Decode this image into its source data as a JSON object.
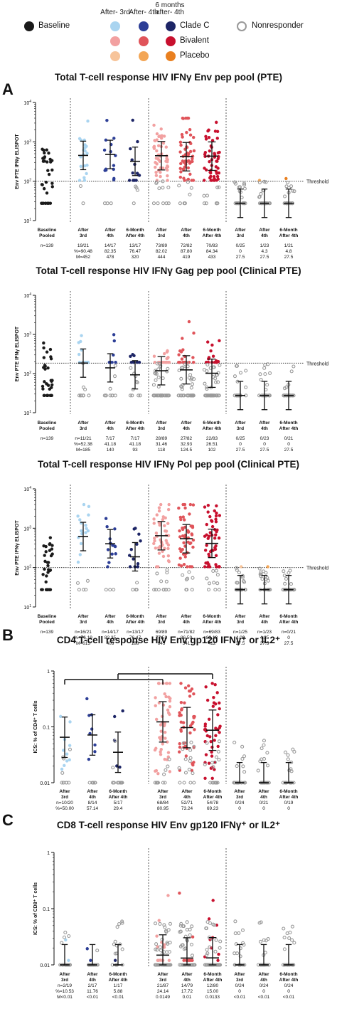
{
  "legend": {
    "column_headers": [
      "After- 3rd",
      "After- 4th",
      "6 months after- 4th"
    ],
    "rows": [
      {
        "label": "Baseline",
        "colors": [
          "#1a1a1a"
        ]
      },
      {
        "label": "Clade C",
        "colors": [
          "#a9d4f0",
          "#2c3e96",
          "#1d2566"
        ]
      },
      {
        "label": "Bivalent",
        "colors": [
          "#f2a0a0",
          "#e0545a",
          "#c8102e"
        ]
      },
      {
        "label": "Placebo",
        "colors": [
          "#f7c49a",
          "#f3a656",
          "#e98020"
        ]
      }
    ],
    "nonresponder_label": "Nonresponder"
  },
  "panel_letters": [
    "A",
    "B",
    "C"
  ],
  "threshold_label": "Threshold",
  "elispot_ylabel": "Env PTE IFNγ ELISPOT",
  "ics_ylabel_cd4": "ICS: % of CD4⁺ T cells",
  "ics_ylabel_cd8": "ICS: % of CD8⁺ T cells",
  "elispot_categories": [
    "Baseline Pooled",
    "After 3rd",
    "After 4th",
    "6-Month After 4th",
    "After 3rd",
    "After 4th",
    "6-Month After 4th",
    "After 3rd",
    "After 4th",
    "6-Month After 4th"
  ],
  "ics_categories": [
    "After 3rd",
    "After 4th",
    "6-Month After 4th",
    "After 3rd",
    "After 4th",
    "6-Month After 4th",
    "After 3rd",
    "After 4th",
    "6-Month After 4th"
  ],
  "chart_data": [
    {
      "type": "scatter",
      "title": "Total T-cell response HIV IFNγ Env pep pool (PTE)",
      "ylabel": "Env PTE IFNγ ELISPOT",
      "yscale": "log",
      "ylim": [
        10,
        10000
      ],
      "threshold": 100,
      "categories": [
        "Baseline Pooled",
        "After 3rd",
        "After 4th",
        "6-Month After 4th",
        "After 3rd",
        "After 4th",
        "6-Month After 4th",
        "After 3rd",
        "After 4th",
        "6-Month After 4th"
      ],
      "groups": [
        "Baseline",
        "Clade C",
        "Clade C",
        "Clade C",
        "Bivalent",
        "Bivalent",
        "Bivalent",
        "Placebo",
        "Placebo",
        "Placebo"
      ],
      "responders": [
        null,
        19,
        14,
        13,
        73,
        72,
        70,
        0,
        1,
        1
      ],
      "n": [
        139,
        21,
        17,
        17,
        89,
        82,
        83,
        25,
        23,
        21
      ],
      "median": [
        null,
        452,
        478,
        320,
        444,
        419,
        433,
        27.5,
        27.5,
        27.5
      ],
      "count_text": [
        "n=139",
        "19/21",
        "14/17",
        "13/17",
        "73/89",
        "72/82",
        "70/83",
        "0/25",
        "1/23",
        "1/21"
      ],
      "pct_text": [
        "",
        "%=90.48",
        "82.35",
        "76.47",
        "82.02",
        "87.80",
        "84.34",
        "0",
        "4.3",
        "4.8"
      ],
      "med_text": [
        "",
        "M=452",
        "478",
        "320",
        "444",
        "419",
        "433",
        "27.5",
        "27.5",
        "27.5"
      ]
    },
    {
      "type": "scatter",
      "title": "Total T-cell response HIV IFNγ Gag pep pool (Clinical PTE)",
      "ylabel": "Env PTE IFNγ ELISPOT",
      "yscale": "log",
      "ylim": [
        10,
        10000
      ],
      "threshold": 185,
      "categories": [
        "Baseline Pooled",
        "After 3rd",
        "After 4th",
        "6-Month After 4th",
        "After 3rd",
        "After 4th",
        "6-Month After 4th",
        "After 3rd",
        "After 4th",
        "6-Month After 4th"
      ],
      "groups": [
        "Baseline",
        "Clade C",
        "Clade C",
        "Clade C",
        "Bivalent",
        "Bivalent",
        "Bivalent",
        "Placebo",
        "Placebo",
        "Placebo"
      ],
      "responders": [
        null,
        11,
        7,
        7,
        28,
        27,
        22,
        0,
        0,
        0
      ],
      "n": [
        139,
        21,
        17,
        17,
        89,
        82,
        83,
        25,
        23,
        21
      ],
      "median": [
        null,
        185,
        140,
        93,
        118,
        124.5,
        102,
        27.5,
        27.5,
        27.5
      ],
      "count_text": [
        "n=139",
        "n=11/21",
        "7/17",
        "7/17",
        "28/89",
        "27/82",
        "22/83",
        "0/25",
        "0/23",
        "0/21"
      ],
      "pct_text": [
        "",
        "%=52.38",
        "41.18",
        "41.18",
        "31.46",
        "32.93",
        "26.51",
        "0",
        "0",
        "0"
      ],
      "med_text": [
        "",
        "M=185",
        "140",
        "93",
        "118",
        "124.5",
        "102",
        "27.5",
        "27.5",
        "27.5"
      ]
    },
    {
      "type": "scatter",
      "title": "Total T-cell response HIV IFNγ Pol pep pool (Clinical PTE)",
      "ylabel": "Env PTE IFNγ ELISPOT",
      "yscale": "log",
      "ylim": [
        10,
        10000
      ],
      "threshold": 100,
      "categories": [
        "Baseline Pooled",
        "After 3rd",
        "After 4th",
        "6-Month After 4th",
        "After 3rd",
        "After 4th",
        "6-Month After 4th",
        "After 3rd",
        "After 4th",
        "6-Month After 4th"
      ],
      "groups": [
        "Baseline",
        "Clade C",
        "Clade C",
        "Clade C",
        "Bivalent",
        "Bivalent",
        "Bivalent",
        "Placebo",
        "Placebo",
        "Placebo"
      ],
      "responders": [
        null,
        16,
        14,
        13,
        69,
        71,
        69,
        1,
        1,
        0
      ],
      "n": [
        139,
        21,
        17,
        17,
        89,
        82,
        83,
        25,
        23,
        21
      ],
      "median": [
        null,
        615,
        403,
        188,
        645,
        541,
        412,
        27.5,
        27.5,
        27.5
      ],
      "count_text": [
        "n=139",
        "n=16/21",
        "n=14/17",
        "n=13/17",
        "69/89",
        "n=71/82",
        "n=69/83",
        "n=1/25",
        "n=1/23",
        "n=0/21"
      ],
      "pct_text": [
        "",
        "%=76.19",
        "82.35",
        "76.47",
        "77.53",
        "86.59",
        "83.13",
        "4.00",
        "4.35",
        "0"
      ],
      "med_text": [
        "",
        "M=615",
        "403",
        "188",
        "645",
        "541",
        "412",
        "27.5",
        "27.5",
        "27.5"
      ]
    },
    {
      "type": "scatter",
      "title": "CD4 T-cell response HIV Env gp120 IFNγ⁺ or IL2⁺",
      "ylabel": "ICS: % of CD4⁺ T cells",
      "yscale": "log",
      "ylim": [
        0.01,
        1
      ],
      "categories": [
        "After 3rd",
        "After 4th",
        "6-Month After 4th",
        "After 3rd",
        "After 4th",
        "6-Month After 4th",
        "After 3rd",
        "After 4th",
        "6-Month After 4th"
      ],
      "groups": [
        "Clade C",
        "Clade C",
        "Clade C",
        "Bivalent",
        "Bivalent",
        "Bivalent",
        "Placebo",
        "Placebo",
        "Placebo"
      ],
      "responders": [
        10,
        8,
        5,
        68,
        52,
        54,
        0,
        0,
        0
      ],
      "n": [
        20,
        14,
        17,
        84,
        71,
        78,
        24,
        21,
        19
      ],
      "median": [
        0.0652,
        0.0715,
        0.0351,
        0.1229,
        0.0971,
        0.0871,
        0.01,
        0.01,
        0.01
      ],
      "count_text": [
        "n=10/20",
        "8/14",
        "5/17",
        "68/84",
        "52/71",
        "54/78",
        "0/24",
        "0/21",
        "0/19"
      ],
      "pct_text": [
        "%=50.00",
        "57.14",
        "29.4",
        "80.95",
        "73.24",
        "69.23",
        "0",
        "0",
        "0"
      ],
      "med_text": [
        "M=0.0652",
        "0.0715",
        "0.0351",
        "0.1229",
        "0.0971",
        "0.0871",
        "<0.01",
        "<0.01",
        "<0.01"
      ]
    },
    {
      "type": "scatter",
      "title": "CD8 T-cell response HIV Env gp120 IFNγ⁺ or IL2⁺",
      "ylabel": "ICS: % of CD8⁺ T cells",
      "yscale": "log",
      "ylim": [
        0.01,
        1
      ],
      "categories": [
        "After 3rd",
        "After 4th",
        "6-Month After 4th",
        "After 3rd",
        "After 4th",
        "6-Month After 4th",
        "After 3rd",
        "After 4th",
        "6-Month After 4th"
      ],
      "groups": [
        "Clade C",
        "Clade C",
        "Clade C",
        "Bivalent",
        "Bivalent",
        "Bivalent",
        "Placebo",
        "Placebo",
        "Placebo"
      ],
      "responders": [
        2,
        2,
        1,
        21,
        14,
        12,
        0,
        0,
        0
      ],
      "n": [
        19,
        17,
        17,
        87,
        79,
        80,
        24,
        24,
        24
      ],
      "median": [
        0.01,
        0.01,
        0.01,
        0.0149,
        0.0132,
        0.0133,
        0.01,
        0.01,
        0.01
      ],
      "count_text": [
        "n=2/19",
        "2/17",
        "1/17",
        "21/87",
        "14/79",
        "12/80",
        "0/24",
        "0/24",
        "0/24"
      ],
      "pct_text": [
        "%=10.53",
        "11.76",
        "5.88",
        "24.14",
        "17.72",
        "15.00",
        "0",
        "0",
        "0"
      ],
      "med_text": [
        "M<0.01",
        "<0.01",
        "<0.01",
        "0.0149",
        "0.01",
        "0.0133",
        "<0.01",
        "<0.01",
        "<0.01"
      ]
    }
  ]
}
